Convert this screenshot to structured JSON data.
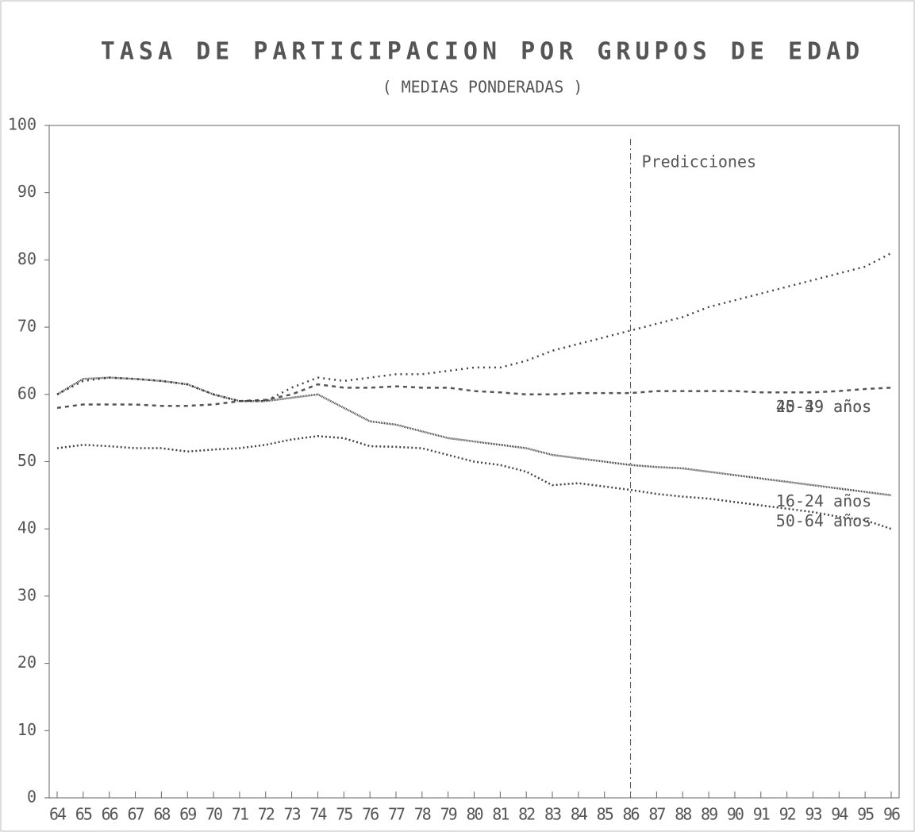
{
  "chart_data": {
    "type": "line",
    "title": "TASA DE PARTICIPACION POR GRUPOS DE EDAD",
    "subtitle": "( MEDIAS PONDERADAS )",
    "annotation": {
      "text": "Predicciones",
      "x": "86"
    },
    "categories": [
      "64",
      "65",
      "66",
      "67",
      "68",
      "69",
      "70",
      "71",
      "72",
      "73",
      "74",
      "75",
      "76",
      "77",
      "78",
      "79",
      "80",
      "81",
      "82",
      "83",
      "84",
      "85",
      "86",
      "87",
      "88",
      "89",
      "90",
      "91",
      "92",
      "93",
      "94",
      "95",
      "96"
    ],
    "ylim": [
      0,
      100
    ],
    "yticks": [
      0,
      10,
      20,
      30,
      40,
      50,
      60,
      70,
      80,
      90,
      100
    ],
    "series": [
      {
        "name": "25-39 años",
        "color": "#444",
        "values": [
          60,
          62,
          62.5,
          62.3,
          62,
          61.5,
          60,
          59,
          59,
          61,
          62.5,
          62,
          62.5,
          63,
          63,
          63.5,
          64,
          64,
          65,
          66.5,
          67.5,
          68.5,
          69.5,
          70.5,
          71.5,
          73,
          74,
          75,
          76,
          77,
          78,
          79,
          81
        ]
      },
      {
        "name": "40-49 años",
        "color": "#555",
        "values": [
          58,
          58.5,
          58.5,
          58.5,
          58.3,
          58.3,
          58.5,
          59,
          59.2,
          60,
          61.5,
          61,
          61,
          61.2,
          61,
          61,
          60.5,
          60.3,
          60,
          60,
          60.2,
          60.2,
          60.2,
          60.5,
          60.5,
          60.5,
          60.5,
          60.3,
          60.3,
          60.3,
          60.5,
          60.8,
          61
        ]
      },
      {
        "name": "16-24 años",
        "color": "#333",
        "values": [
          60,
          62.3,
          62.5,
          62.3,
          62,
          61.5,
          60,
          59,
          59,
          59.5,
          60,
          58,
          56,
          55.5,
          54.5,
          53.5,
          53,
          52.5,
          52,
          51,
          50.5,
          50,
          49.5,
          49.2,
          49,
          48.5,
          48,
          47.5,
          47,
          46.5,
          46,
          45.5,
          45
        ]
      },
      {
        "name": "50-64 años",
        "color": "#444",
        "values": [
          52,
          52.5,
          52.3,
          52,
          52,
          51.5,
          51.8,
          52,
          52.5,
          53.3,
          53.8,
          53.5,
          52.3,
          52.2,
          52,
          51,
          50,
          49.5,
          48.5,
          46.5,
          46.8,
          46.3,
          45.8,
          45.2,
          44.8,
          44.5,
          44,
          43.5,
          43,
          42.5,
          41.8,
          41.3,
          40
        ]
      }
    ]
  }
}
